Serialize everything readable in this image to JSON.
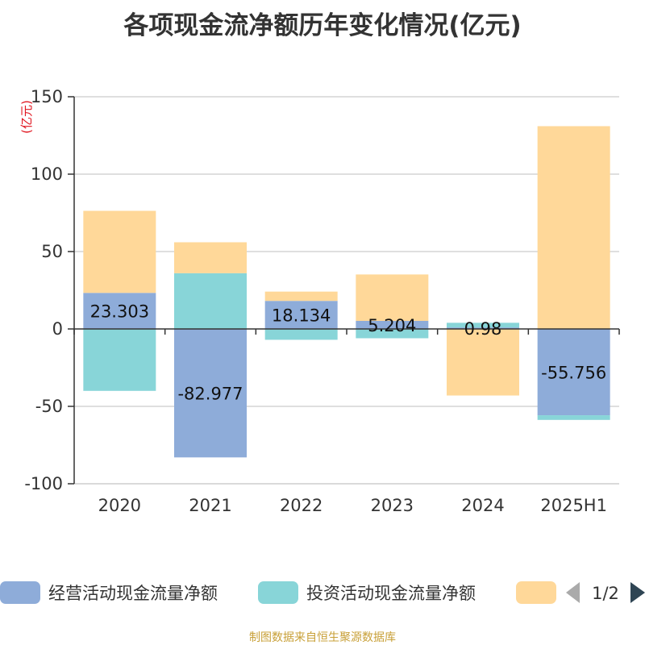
{
  "title": "各项现金流净额历年变化情况(亿元)",
  "source": "制图数据来自恒生聚源数据库",
  "chart_data": {
    "type": "bar",
    "stacked": true,
    "categories": [
      "2020",
      "2021",
      "2022",
      "2023",
      "2024",
      "2025H1"
    ],
    "ylabel": "(亿元)",
    "ylim": [
      -100,
      150
    ],
    "yticks": [
      150,
      100,
      50,
      0,
      -50,
      -100
    ],
    "grid": true,
    "legend_position": "bottom",
    "legend_page": "1/2",
    "series": [
      {
        "name": "经营活动现金流量净额",
        "color": "#8eacd9",
        "values": [
          23.303,
          -82.977,
          18.134,
          5.204,
          0.98,
          -55.756
        ],
        "labels": [
          "23.303",
          "-82.977",
          "18.134",
          "5.204",
          "0.98",
          "-55.756"
        ]
      },
      {
        "name": "投资活动现金流量净额",
        "color": "#88d5d8",
        "values": [
          -40,
          36,
          -7,
          -6,
          3,
          -3
        ]
      },
      {
        "name": "",
        "color": "#ffd899",
        "values": [
          53,
          20,
          6,
          30,
          -43,
          131
        ]
      }
    ]
  }
}
